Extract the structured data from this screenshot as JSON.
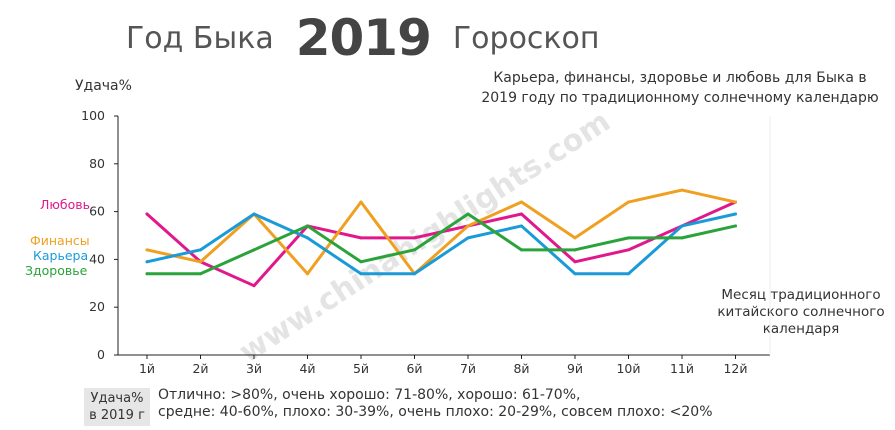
{
  "header": {
    "title_pre": "Год Быка",
    "title_year": "2019",
    "title_post": "Гороскоп",
    "subtitle_line1": "Карьера, финансы, здоровье и любовь для Быка в",
    "subtitle_line2": "2019 году по традиционному солнечному календарю"
  },
  "watermark": "www.chinahighlights.com",
  "footer": {
    "label_line1": "Удача%",
    "label_line2": "в 2019 г",
    "line1": "Отлично: >80%, очень хорошо: 71-80%, хорошо: 61-70%,",
    "line2": "средне: 40-60%, плохо: 30-39%, очень плохо: 20-29%, совсем плохо: <20%"
  },
  "chart_data": {
    "type": "line",
    "ylabel": "Удача%",
    "xlabel_lines": [
      "Месяц традиционного",
      "китайского солнечного",
      "календаря"
    ],
    "ylim": [
      0,
      100
    ],
    "yticks": [
      0,
      20,
      40,
      60,
      80,
      100
    ],
    "grid": false,
    "legend_placement": "left",
    "categories": [
      "1й",
      "2й",
      "3й",
      "4й",
      "5й",
      "6й",
      "7й",
      "8й",
      "9й",
      "10й",
      "11й",
      "12й"
    ],
    "series": [
      {
        "name": "Любовь",
        "color": "#e0188c",
        "values": [
          59,
          39,
          29,
          54,
          49,
          49,
          54,
          59,
          39,
          44,
          54,
          64
        ]
      },
      {
        "name": "Финансы",
        "color": "#f0a020",
        "values": [
          44,
          39,
          59,
          34,
          64,
          34,
          54,
          64,
          49,
          64,
          69,
          64
        ]
      },
      {
        "name": "Карьера",
        "color": "#1a9bd7",
        "values": [
          39,
          44,
          59,
          49,
          34,
          34,
          49,
          54,
          34,
          34,
          54,
          59
        ]
      },
      {
        "name": "Здоровье",
        "color": "#2aa33a",
        "values": [
          34,
          34,
          44,
          54,
          39,
          44,
          59,
          44,
          44,
          49,
          49,
          54
        ]
      }
    ]
  }
}
